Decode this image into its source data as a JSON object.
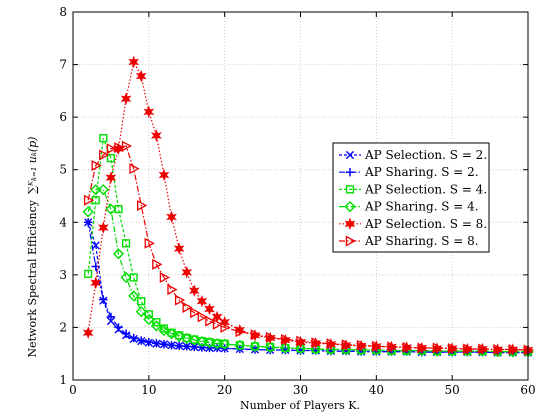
{
  "chart_data": {
    "type": "line",
    "title": "",
    "xlabel": "Number of Players K.",
    "ylabel_prefix": "Network Spectral Efficiency",
    "ylabel_formula": "∑ᴷₖ₌₁ uₖ(p)",
    "xlim": [
      0,
      60
    ],
    "ylim": [
      1,
      8
    ],
    "xticks": [
      0,
      10,
      20,
      30,
      40,
      50,
      60
    ],
    "yticks": [
      1,
      2,
      3,
      4,
      5,
      6,
      7,
      8
    ],
    "grid": true,
    "legend_position": "right-middle",
    "series": [
      {
        "name": "AP Selection. S = 2.",
        "color": "#0000ff",
        "marker": "x",
        "dash": "3,2",
        "x": [
          2,
          3,
          4,
          5,
          6,
          7,
          8,
          9,
          10,
          11,
          12,
          13,
          14,
          15,
          16,
          17,
          18,
          19,
          20,
          22,
          24,
          26,
          28,
          30,
          32,
          34,
          36,
          38,
          40,
          42,
          44,
          46,
          48,
          50,
          52,
          54,
          56,
          58,
          60
        ],
        "y": [
          4.0,
          3.56,
          2.51,
          2.12,
          1.96,
          1.85,
          1.78,
          1.74,
          1.71,
          1.69,
          1.68,
          1.66,
          1.65,
          1.64,
          1.63,
          1.62,
          1.61,
          1.61,
          1.6,
          1.59,
          1.58,
          1.57,
          1.57,
          1.56,
          1.56,
          1.55,
          1.55,
          1.54,
          1.54,
          1.54,
          1.54,
          1.53,
          1.53,
          1.53,
          1.53,
          1.53,
          1.52,
          1.52,
          1.52
        ]
      },
      {
        "name": "AP Sharing. S = 2.",
        "color": "#0000ff",
        "marker": "plus",
        "dash": "6,2,1.5,2",
        "x": [
          2,
          3,
          4,
          5,
          6,
          7,
          8,
          9,
          10,
          11,
          12,
          13,
          14,
          15,
          16,
          17,
          18,
          19,
          20,
          22,
          24,
          26,
          28,
          30,
          32,
          34,
          36,
          38,
          40,
          42,
          44,
          46,
          48,
          50,
          52,
          54,
          56,
          58,
          60
        ],
        "y": [
          4.0,
          3.16,
          2.53,
          2.2,
          2.0,
          1.88,
          1.8,
          1.75,
          1.72,
          1.7,
          1.68,
          1.66,
          1.65,
          1.64,
          1.63,
          1.62,
          1.61,
          1.61,
          1.6,
          1.59,
          1.58,
          1.57,
          1.57,
          1.56,
          1.56,
          1.55,
          1.55,
          1.54,
          1.54,
          1.54,
          1.54,
          1.53,
          1.53,
          1.53,
          1.53,
          1.53,
          1.52,
          1.52,
          1.52
        ]
      },
      {
        "name": "AP Selection. S = 4.",
        "color": "#00dd00",
        "marker": "square",
        "dash": "3,2",
        "x": [
          2,
          3,
          4,
          5,
          6,
          7,
          8,
          9,
          10,
          11,
          12,
          13,
          14,
          15,
          16,
          17,
          18,
          19,
          20,
          22,
          24,
          26,
          28,
          30,
          32,
          34,
          36,
          38,
          40,
          42,
          44,
          46,
          48,
          50,
          52,
          54,
          56,
          58,
          60
        ],
        "y": [
          3.02,
          4.42,
          5.6,
          5.22,
          4.25,
          3.6,
          2.95,
          2.5,
          2.25,
          2.1,
          1.98,
          1.9,
          1.85,
          1.8,
          1.77,
          1.74,
          1.72,
          1.7,
          1.69,
          1.66,
          1.64,
          1.63,
          1.61,
          1.6,
          1.59,
          1.58,
          1.58,
          1.57,
          1.57,
          1.56,
          1.56,
          1.56,
          1.55,
          1.55,
          1.55,
          1.55,
          1.54,
          1.54,
          1.54
        ]
      },
      {
        "name": "AP Sharing. S = 4.",
        "color": "#00dd00",
        "marker": "diamond",
        "dash": "6,2,1.5,2",
        "x": [
          2,
          3,
          4,
          5,
          6,
          7,
          8,
          9,
          10,
          11,
          12,
          13,
          14,
          15,
          16,
          17,
          18,
          19,
          20,
          22,
          24,
          26,
          28,
          30,
          32,
          34,
          36,
          38,
          40,
          42,
          44,
          46,
          48,
          50,
          52,
          54,
          56,
          58,
          60
        ],
        "y": [
          4.2,
          4.62,
          4.62,
          4.25,
          3.4,
          2.95,
          2.6,
          2.3,
          2.15,
          2.03,
          1.94,
          1.88,
          1.83,
          1.79,
          1.76,
          1.73,
          1.71,
          1.69,
          1.68,
          1.66,
          1.64,
          1.62,
          1.61,
          1.6,
          1.59,
          1.58,
          1.58,
          1.57,
          1.57,
          1.56,
          1.56,
          1.56,
          1.55,
          1.55,
          1.55,
          1.55,
          1.54,
          1.54,
          1.54
        ]
      },
      {
        "name": "AP Selection. S = 8.",
        "color": "#ee0000",
        "marker": "star",
        "dash": "1.5,2",
        "x": [
          2,
          3,
          4,
          5,
          6,
          7,
          8,
          9,
          10,
          11,
          12,
          13,
          14,
          15,
          16,
          17,
          18,
          19,
          20,
          22,
          24,
          26,
          28,
          30,
          32,
          34,
          36,
          38,
          40,
          42,
          44,
          46,
          48,
          50,
          52,
          54,
          56,
          58,
          60
        ],
        "y": [
          1.9,
          2.85,
          3.9,
          4.85,
          5.4,
          6.35,
          7.05,
          6.78,
          6.1,
          5.65,
          4.9,
          4.1,
          3.5,
          3.05,
          2.7,
          2.5,
          2.35,
          2.2,
          2.1,
          1.95,
          1.85,
          1.8,
          1.76,
          1.72,
          1.7,
          1.68,
          1.66,
          1.65,
          1.64,
          1.63,
          1.62,
          1.61,
          1.6,
          1.6,
          1.59,
          1.59,
          1.58,
          1.58,
          1.57
        ]
      },
      {
        "name": "AP Sharing. S = 8.",
        "color": "#ee0000",
        "marker": "triangle-right",
        "dash": "6,2,1.5,2",
        "x": [
          2,
          3,
          4,
          5,
          6,
          7,
          8,
          9,
          10,
          11,
          12,
          13,
          14,
          15,
          16,
          17,
          18,
          19,
          20,
          22,
          24,
          26,
          28,
          30,
          32,
          34,
          36,
          38,
          40,
          42,
          44,
          46,
          48,
          50,
          52,
          54,
          56,
          58,
          60
        ],
        "y": [
          4.42,
          5.08,
          5.28,
          5.4,
          5.42,
          5.45,
          5.02,
          4.32,
          3.6,
          3.2,
          2.95,
          2.72,
          2.52,
          2.38,
          2.28,
          2.2,
          2.12,
          2.06,
          2.0,
          1.92,
          1.86,
          1.81,
          1.77,
          1.74,
          1.71,
          1.69,
          1.67,
          1.66,
          1.64,
          1.63,
          1.62,
          1.61,
          1.61,
          1.6,
          1.59,
          1.59,
          1.58,
          1.58,
          1.57
        ]
      }
    ]
  }
}
